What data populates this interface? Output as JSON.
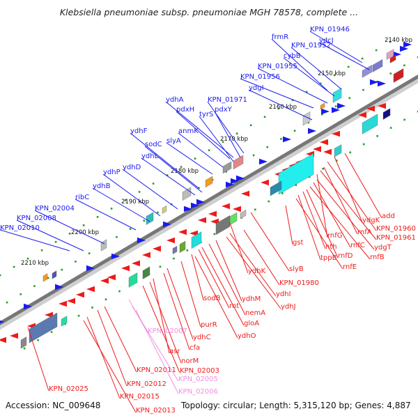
{
  "title": "Klebsiella pneumoniae subsp. pneumoniae MGH 78578, complete ...",
  "footer": {
    "accession": "Accession: NC_009648",
    "summary": "Topology: circular; Length: 5,315,120 bp; Genes: 4,887"
  },
  "colors": {
    "forward_gene": "#1a1aee",
    "reverse_gene": "#ee1a1a",
    "pseudo_gene": "#f090e0",
    "backbone": "#777777"
  },
  "kbp_ticks": [
    "2140 kbp",
    "2150 kbp",
    "2160 kbp",
    "2170 kbp",
    "2180 kbp",
    "2190 kbp",
    "2200 kbp",
    "2210 kbp"
  ],
  "forward_labels": [
    "KPN_01946",
    "frmR",
    "ydcJ",
    "KPN_01952",
    "cybB",
    "KPN_01955",
    "KPN_01956",
    "ydgI",
    "ydhA",
    "KPN_01971",
    "pdxH",
    "tyrS",
    "pdxY",
    "anmK",
    "ydhF",
    "slyA",
    "sodC",
    "ydhL",
    "ydhD",
    "ydhP",
    "ydhB",
    "ribC",
    "KPN_02004",
    "KPN_02008",
    "KPN_02010"
  ],
  "reverse_labels": [
    "add",
    "ydgK",
    "KPN_01960",
    "rnfA",
    "KPN_01961",
    "rnfG",
    "ydgT",
    "rnfC",
    "rnfB",
    "rnfD",
    "nth",
    "tppB",
    "rnfE",
    "gst",
    "slyB",
    "ydhK",
    "KPN_01980",
    "ydhI",
    "ydhJ",
    "ydhM",
    "nemA",
    "gloA",
    "rnt",
    "sodB",
    "purR",
    "ydhO",
    "ydhC",
    "cfa",
    "asr",
    "norM",
    "KPN_02003",
    "KPN_02011",
    "KPN_02012",
    "KPN_02015",
    "KPN_02013",
    "KPN_02025"
  ],
  "pseudo_labels": [
    "KPN_02007",
    "KPN_02005",
    "KPN_02006"
  ]
}
